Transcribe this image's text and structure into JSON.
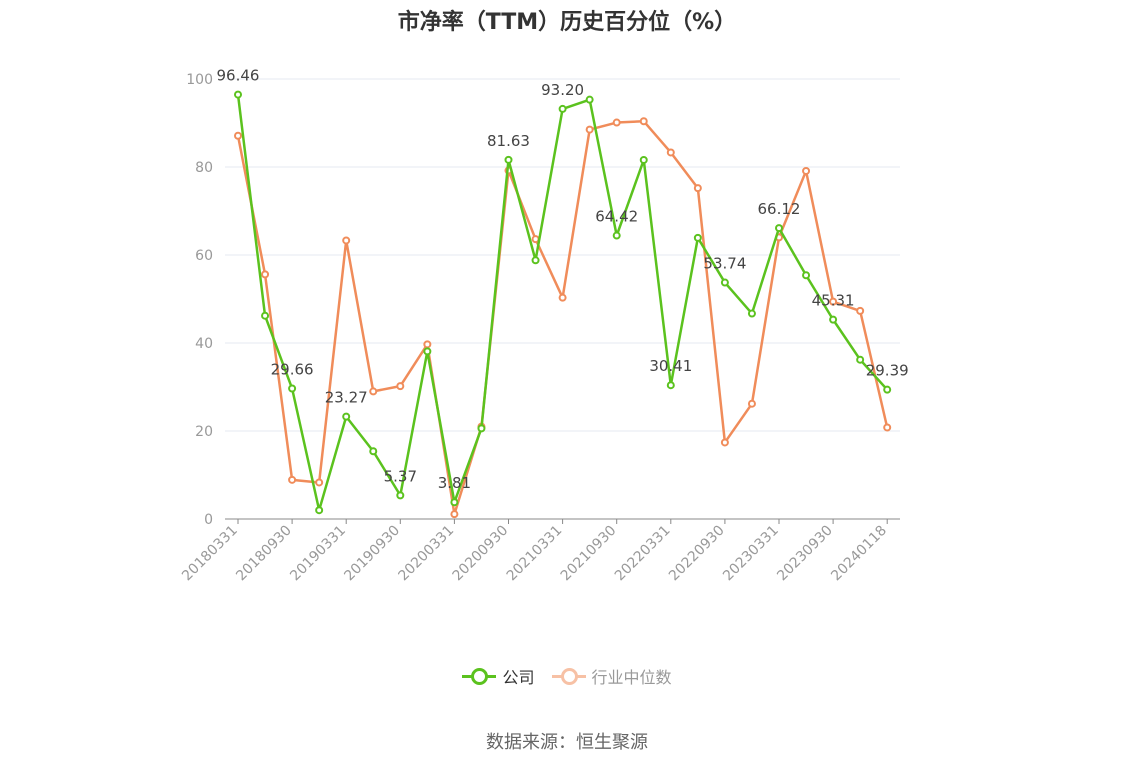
{
  "chart_data": {
    "type": "line",
    "title": "市净率（TTM）历史百分位（%）",
    "source": "数据来源：恒生聚源",
    "ylim": [
      0,
      100
    ],
    "yticks": [
      "0",
      "20",
      "40",
      "60",
      "80",
      "100"
    ],
    "grid": true,
    "legend_position": "bottom-center",
    "x": [
      "20180331",
      "20180630",
      "20180930",
      "20181231",
      "20190331",
      "20190630",
      "20190930",
      "20191231",
      "20200331",
      "20200630",
      "20200930",
      "20201231",
      "20210331",
      "20210630",
      "20210930",
      "20211231",
      "20220331",
      "20220630",
      "20220930",
      "20221231",
      "20230331",
      "20230630",
      "20230930",
      "20231231",
      "20240118"
    ],
    "xtick_labels": [
      "20180331",
      "20180930",
      "20190331",
      "20190930",
      "20200331",
      "20200930",
      "20210331",
      "20210930",
      "20220331",
      "20220930",
      "20230331",
      "20230930",
      "20240118"
    ],
    "series": [
      {
        "name": "公司",
        "color": "#5BC21E",
        "values": [
          96.46,
          46.2,
          29.66,
          2.0,
          23.27,
          15.4,
          5.37,
          38.1,
          3.81,
          20.6,
          81.63,
          58.8,
          93.2,
          95.3,
          64.42,
          81.6,
          30.41,
          63.9,
          53.74,
          46.7,
          66.12,
          55.4,
          45.31,
          36.2,
          29.39
        ],
        "labels": [
          "96.46",
          "",
          "29.66",
          "",
          "23.27",
          "",
          "5.37",
          "",
          "3.81",
          "",
          "81.63",
          "",
          "93.20",
          "",
          "64.42",
          "",
          "30.41",
          "",
          "53.74",
          "",
          "66.12",
          "",
          "45.31",
          "",
          "29.39"
        ]
      },
      {
        "name": "行业中位数",
        "color": "#F08C5A",
        "values": [
          87.1,
          55.6,
          8.9,
          8.3,
          63.3,
          29.0,
          30.2,
          39.7,
          1.1,
          21.0,
          79.2,
          63.6,
          50.3,
          88.5,
          90.1,
          90.4,
          83.3,
          75.2,
          17.4,
          26.2,
          64.0,
          79.1,
          49.4,
          47.3,
          20.8
        ]
      }
    ]
  }
}
